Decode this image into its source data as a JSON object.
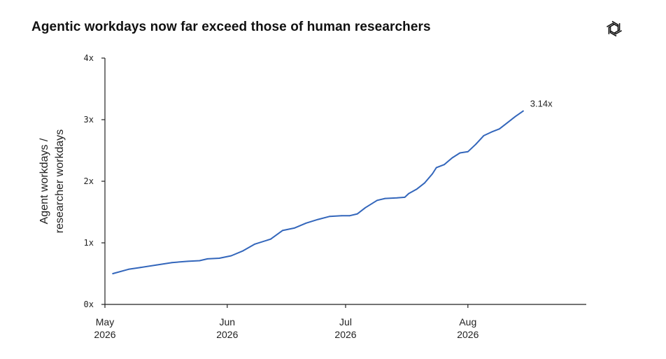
{
  "title": "Agentic workdays now far exceed those of human researchers",
  "logo_icon": "openai-logo-icon",
  "colors": {
    "line": "#3366bb",
    "axis": "#222222",
    "text": "#111111"
  },
  "chart_data": {
    "type": "line",
    "title": "Agentic workdays now far exceed those of human researchers",
    "xlabel": "",
    "ylabel_lines": [
      "Agent workdays /",
      "researcher workdays"
    ],
    "ylim": [
      0,
      4
    ],
    "yticks": [
      0,
      1,
      2,
      3,
      4
    ],
    "ytick_labels": [
      "0x",
      "1x",
      "2x",
      "3x",
      "4x"
    ],
    "xlim": [
      "2026-05-01",
      "2026-08-31"
    ],
    "xticks": [
      {
        "date": "2026-05-01",
        "month": "May",
        "year": "2026"
      },
      {
        "date": "2026-06-01",
        "month": "Jun",
        "year": "2026"
      },
      {
        "date": "2026-07-01",
        "month": "Jul",
        "year": "2026"
      },
      {
        "date": "2026-08-01",
        "month": "Aug",
        "year": "2026"
      }
    ],
    "end_label": "3.14x",
    "grid": false,
    "series": [
      {
        "x": [
          "2026-05-03",
          "2026-05-07",
          "2026-05-10",
          "2026-05-14",
          "2026-05-18",
          "2026-05-22",
          "2026-05-25",
          "2026-05-27",
          "2026-05-30",
          "2026-06-02",
          "2026-06-05",
          "2026-06-08",
          "2026-06-12",
          "2026-06-15",
          "2026-06-18",
          "2026-06-21",
          "2026-06-24",
          "2026-06-27",
          "2026-06-30",
          "2026-07-02",
          "2026-07-04",
          "2026-07-06",
          "2026-07-09",
          "2026-07-11",
          "2026-07-14",
          "2026-07-16",
          "2026-07-17",
          "2026-07-19",
          "2026-07-21",
          "2026-07-23",
          "2026-07-24",
          "2026-07-26",
          "2026-07-28",
          "2026-07-30",
          "2026-08-01",
          "2026-08-03",
          "2026-08-05",
          "2026-08-07",
          "2026-08-09",
          "2026-08-11",
          "2026-08-13",
          "2026-08-15"
        ],
        "y": [
          0.5,
          0.57,
          0.6,
          0.64,
          0.68,
          0.7,
          0.71,
          0.74,
          0.75,
          0.79,
          0.87,
          0.98,
          1.06,
          1.2,
          1.24,
          1.32,
          1.38,
          1.43,
          1.44,
          1.44,
          1.47,
          1.57,
          1.69,
          1.72,
          1.73,
          1.74,
          1.8,
          1.87,
          1.97,
          2.12,
          2.22,
          2.27,
          2.38,
          2.46,
          2.48,
          2.6,
          2.74,
          2.8,
          2.85,
          2.95,
          3.05,
          3.14
        ]
      }
    ]
  }
}
